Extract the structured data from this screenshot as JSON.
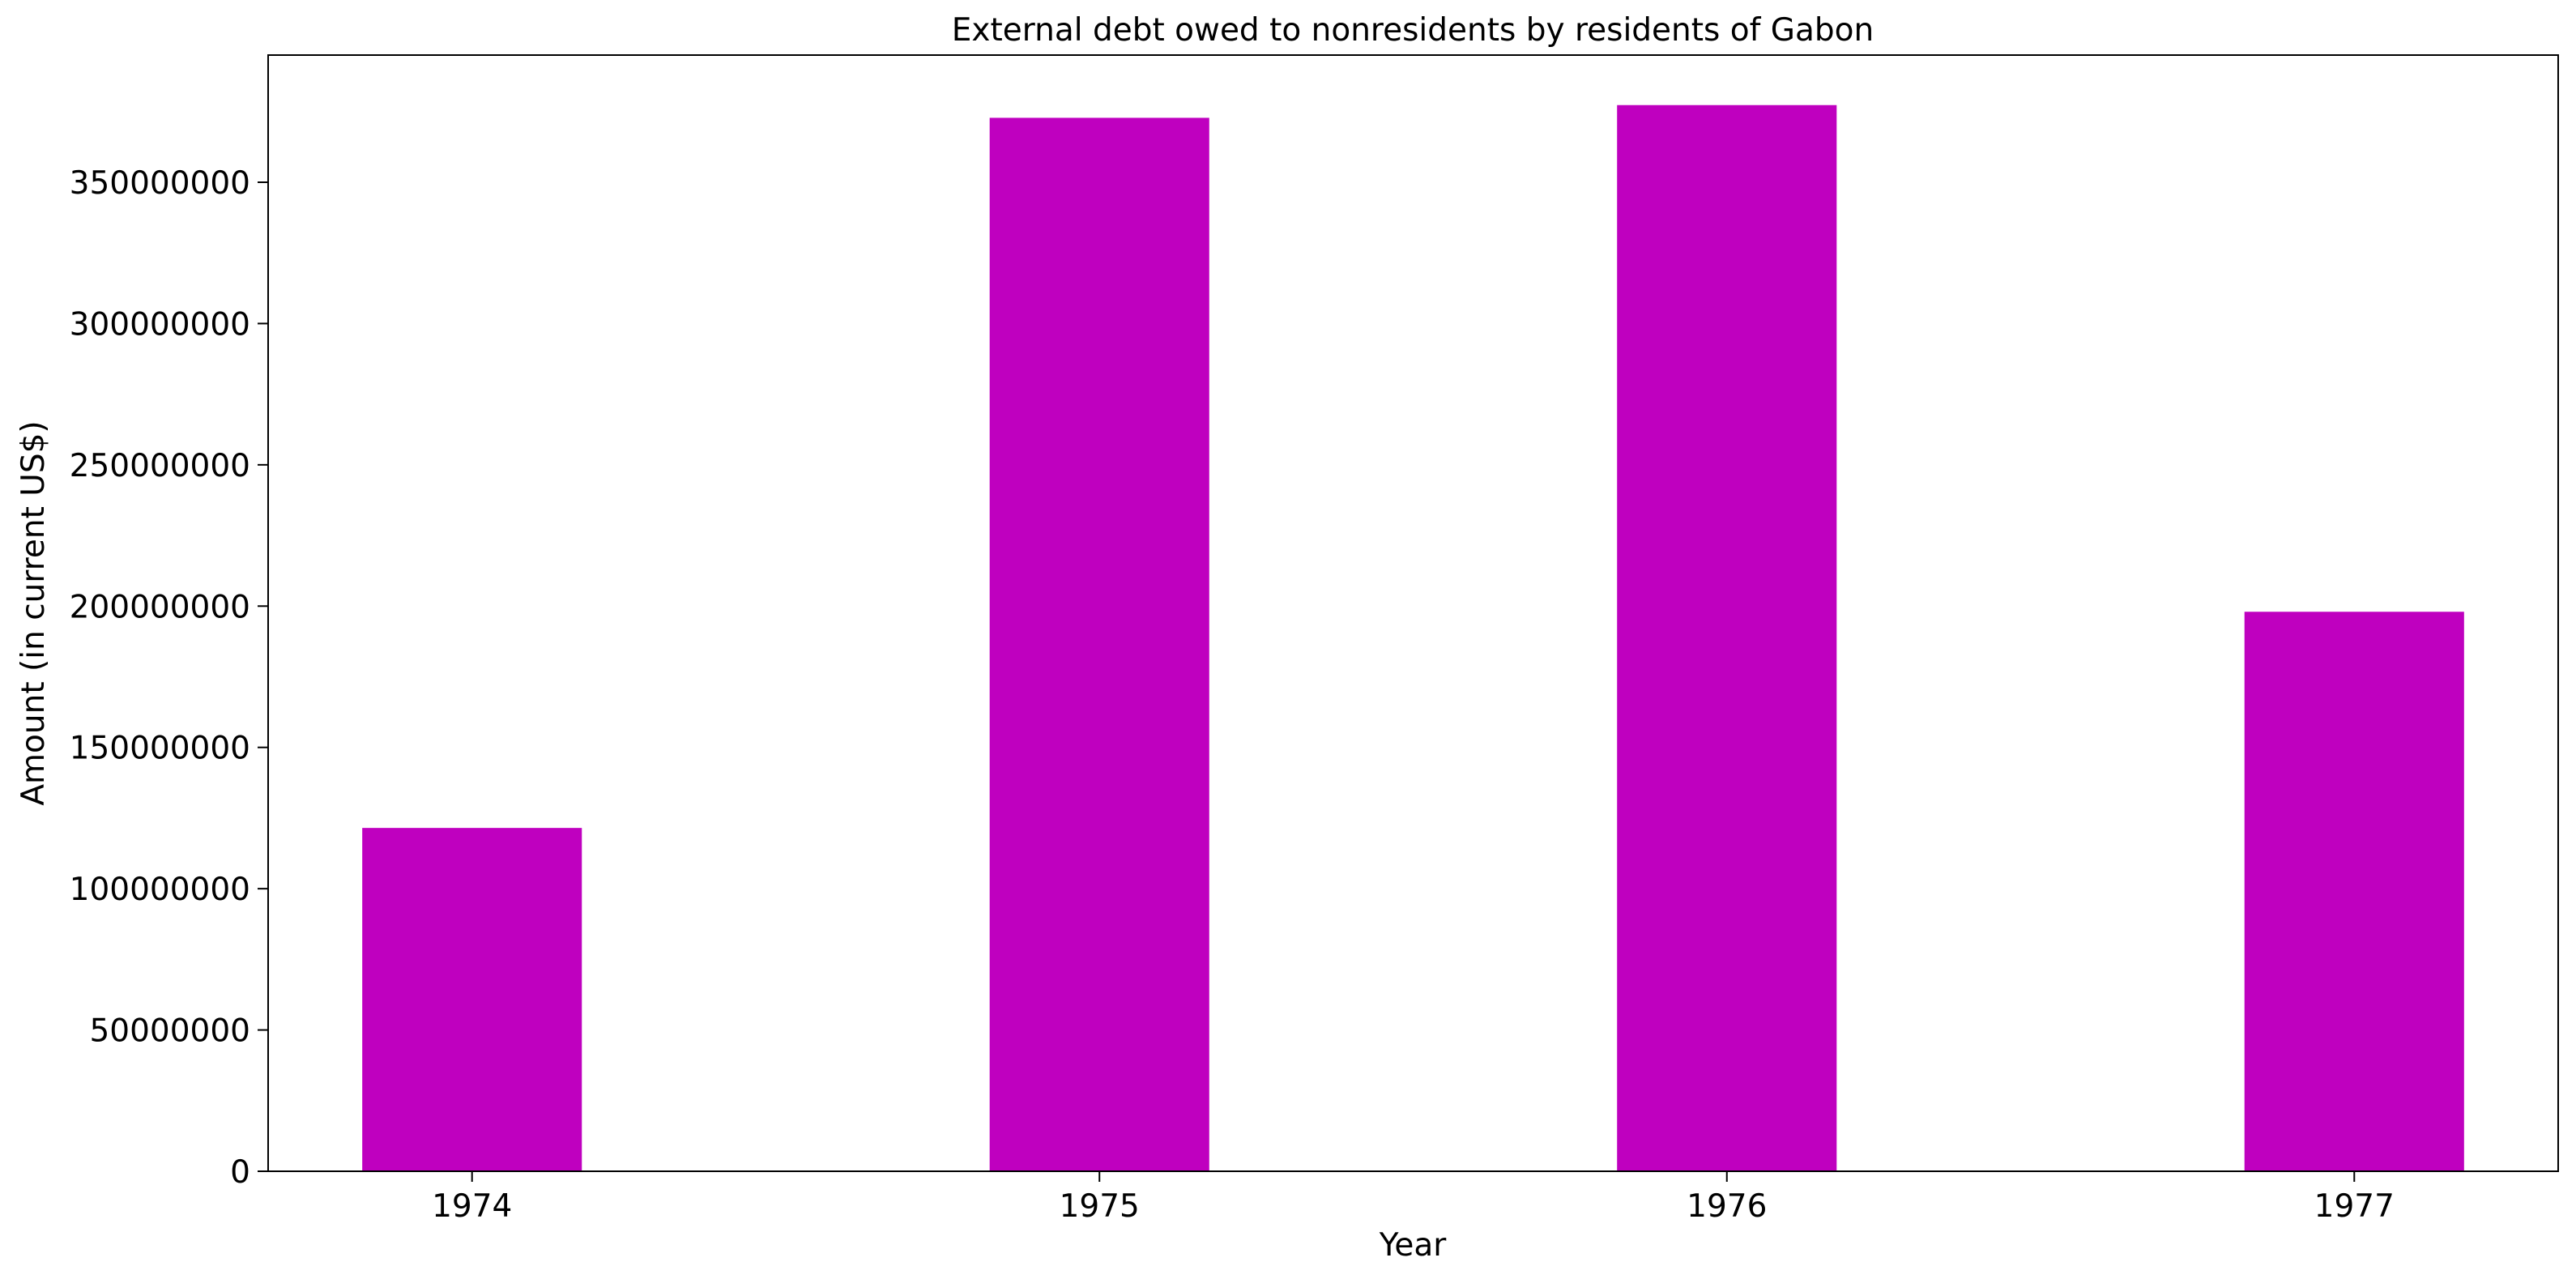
{
  "chart_data": {
    "type": "bar",
    "title": "External debt owed to nonresidents by residents of Gabon",
    "xlabel": "Year",
    "ylabel": "Amount (in current US$)",
    "categories": [
      "1974",
      "1975",
      "1976",
      "1977"
    ],
    "values": [
      121500000,
      372800000,
      377300000,
      198000000
    ],
    "ylim": [
      0,
      395000000
    ],
    "yticks": [
      0,
      50000000,
      100000000,
      150000000,
      200000000,
      250000000,
      300000000,
      350000000
    ],
    "ytick_labels": [
      "0",
      "50000000",
      "100000000",
      "150000000",
      "200000000",
      "250000000",
      "300000000",
      "350000000"
    ],
    "bar_color": "#bf00bf",
    "grid": false,
    "legend": "none"
  }
}
